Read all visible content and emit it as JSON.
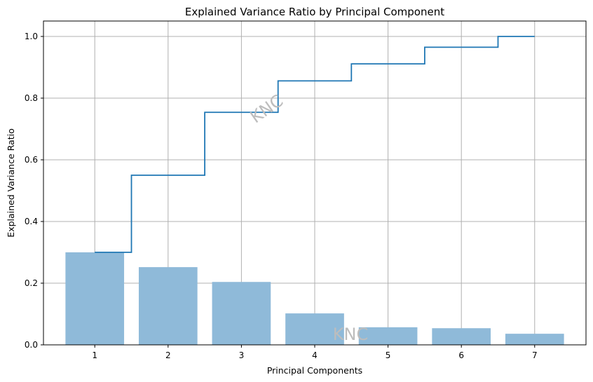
{
  "chart_data": {
    "type": "bar",
    "title": "Explained Variance Ratio by Principal Component",
    "xlabel": "Principal Components",
    "ylabel": "Explained Variance Ratio",
    "categories": [
      "1",
      "2",
      "3",
      "4",
      "5",
      "6",
      "7"
    ],
    "x": [
      1,
      2,
      3,
      4,
      5,
      6,
      7
    ],
    "series": [
      {
        "type": "bar",
        "values": [
          0.3,
          0.252,
          0.204,
          0.102,
          0.057,
          0.054,
          0.036
        ],
        "color": "#8fbad9"
      },
      {
        "type": "step",
        "values": [
          0.3,
          0.55,
          0.754,
          0.856,
          0.911,
          0.965,
          1.0
        ],
        "color": "#1f77b4"
      }
    ],
    "xlim": [
      0.3,
      7.7
    ],
    "ylim": [
      0,
      1.05
    ],
    "yticks": [
      0.0,
      0.2,
      0.4,
      0.6,
      0.8,
      1.0
    ],
    "ytick_labels": [
      "0.0",
      "0.2",
      "0.4",
      "0.6",
      "0.8",
      "1.0"
    ],
    "xtick_labels": [
      "1",
      "2",
      "3",
      "4",
      "5",
      "6",
      "7"
    ],
    "grid": true,
    "grid_color": "#b0b0b0",
    "watermarks": [
      "KNC",
      "KNC"
    ]
  }
}
